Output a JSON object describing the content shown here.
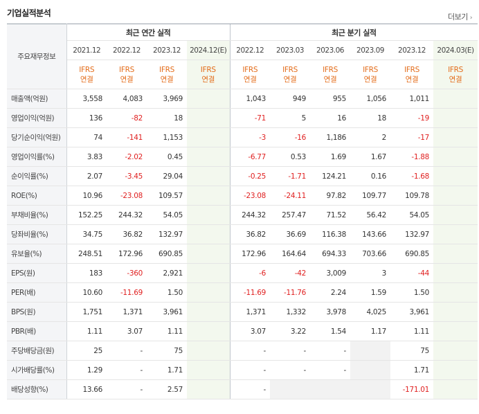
{
  "header": {
    "title": "기업실적분석",
    "more_label": "더보기",
    "more_arrow": "›"
  },
  "table": {
    "label_head": "주요재무정보",
    "annual_group": "최근 연간 실적",
    "quarter_group": "최근 분기 실적",
    "annual_periods": [
      "2021.12",
      "2022.12",
      "2023.12",
      "2024.12(E)"
    ],
    "quarter_periods": [
      "2022.12",
      "2023.03",
      "2023.06",
      "2023.09",
      "2023.12",
      "2024.03(E)"
    ],
    "ifrs_top": "IFRS",
    "ifrs_bottom": "연결",
    "rows": [
      {
        "label": "매출액(억원)",
        "values": [
          "3,558",
          "4,083",
          "3,969",
          "",
          "1,043",
          "949",
          "955",
          "1,056",
          "1,011",
          ""
        ]
      },
      {
        "label": "영업이익(억원)",
        "values": [
          "136",
          "-82",
          "18",
          "",
          "-71",
          "5",
          "16",
          "18",
          "-19",
          ""
        ]
      },
      {
        "label": "당기순이익(억원)",
        "values": [
          "74",
          "-141",
          "1,153",
          "",
          "-3",
          "-16",
          "1,186",
          "2",
          "-17",
          ""
        ]
      },
      {
        "label": "영업이익률(%)",
        "values": [
          "3.83",
          "-2.02",
          "0.45",
          "",
          "-6.77",
          "0.53",
          "1.69",
          "1.67",
          "-1.88",
          ""
        ]
      },
      {
        "label": "순이익률(%)",
        "values": [
          "2.07",
          "-3.45",
          "29.04",
          "",
          "-0.25",
          "-1.71",
          "124.21",
          "0.16",
          "-1.68",
          ""
        ]
      },
      {
        "label": "ROE(%)",
        "values": [
          "10.96",
          "-23.08",
          "109.57",
          "",
          "-23.08",
          "-24.11",
          "97.82",
          "109.77",
          "109.78",
          ""
        ]
      },
      {
        "label": "부채비율(%)",
        "values": [
          "152.25",
          "244.32",
          "54.05",
          "",
          "244.32",
          "257.47",
          "71.52",
          "56.42",
          "54.05",
          ""
        ]
      },
      {
        "label": "당좌비율(%)",
        "values": [
          "34.75",
          "36.82",
          "132.97",
          "",
          "36.82",
          "36.69",
          "116.38",
          "143.66",
          "132.97",
          ""
        ]
      },
      {
        "label": "유보율(%)",
        "values": [
          "248.51",
          "172.96",
          "690.85",
          "",
          "172.96",
          "164.64",
          "694.33",
          "703.66",
          "690.85",
          ""
        ]
      },
      {
        "label": "EPS(원)",
        "values": [
          "183",
          "-360",
          "2,921",
          "",
          "-6",
          "-42",
          "3,009",
          "3",
          "-44",
          ""
        ]
      },
      {
        "label": "PER(배)",
        "values": [
          "10.60",
          "-11.69",
          "1.50",
          "",
          "-11.69",
          "-11.76",
          "2.24",
          "1.59",
          "1.50",
          ""
        ]
      },
      {
        "label": "BPS(원)",
        "values": [
          "1,751",
          "1,371",
          "3,961",
          "",
          "1,371",
          "1,332",
          "3,978",
          "4,025",
          "3,961",
          ""
        ]
      },
      {
        "label": "PBR(배)",
        "values": [
          "1.11",
          "3.07",
          "1.11",
          "",
          "3.07",
          "3.22",
          "1.54",
          "1.17",
          "1.11",
          ""
        ]
      },
      {
        "label": "주당배당금(원)",
        "values": [
          "25",
          "-",
          "75",
          "",
          "-",
          "-",
          "-",
          "",
          "75",
          ""
        ]
      },
      {
        "label": "시가배당률(%)",
        "values": [
          "1.29",
          "-",
          "1.71",
          "",
          "-",
          "-",
          "-",
          "",
          "1.71",
          ""
        ]
      },
      {
        "label": "배당성향(%)",
        "values": [
          "13.66",
          "-",
          "2.57",
          "",
          "-",
          "",
          "",
          "",
          "-171.01",
          ""
        ]
      }
    ]
  },
  "colors": {
    "negative": "#e02020",
    "ifrs": "#e36c1a",
    "estimate_bg": "#f3f8ee"
  }
}
